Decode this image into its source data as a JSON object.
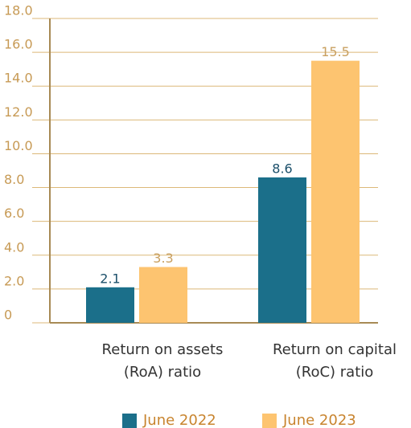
{
  "chart_data": {
    "type": "bar",
    "categories": [
      "Return on assets (RoA) ratio",
      "Return on capital (RoC) ratio"
    ],
    "series": [
      {
        "name": "June 2022",
        "color": "#1b6f8a",
        "values": [
          2.1,
          8.6
        ]
      },
      {
        "name": "June 2023",
        "color": "#fdc470",
        "values": [
          3.3,
          15.5
        ]
      }
    ],
    "ylim": [
      0,
      18
    ],
    "yticks": [
      0,
      {
        "value": 2,
        "label": "2.0"
      },
      {
        "value": 4,
        "label": "4.0"
      },
      {
        "value": 6,
        "label": "6.0"
      },
      {
        "value": 8,
        "label": "8.0"
      },
      {
        "value": 10,
        "label": "10.0"
      },
      {
        "value": 12,
        "label": "12.0"
      },
      {
        "value": 14,
        "label": "14.0"
      },
      {
        "value": 16,
        "label": "16.0"
      },
      {
        "value": 18,
        "label": "18.0"
      }
    ],
    "grid": true,
    "legend": "bottom"
  }
}
